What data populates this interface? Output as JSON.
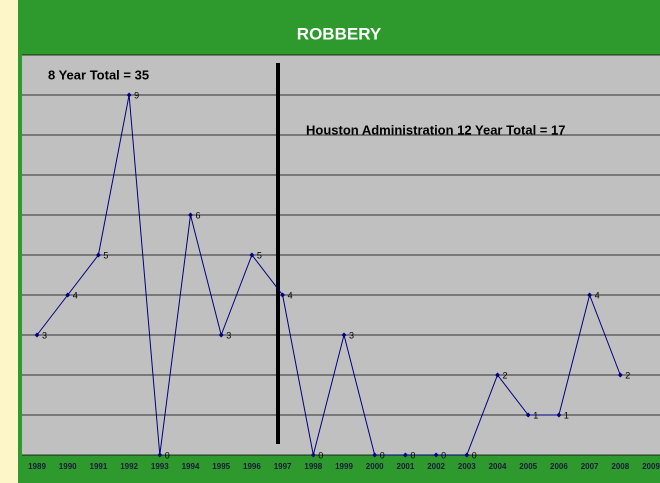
{
  "chart_data": {
    "type": "line",
    "title": "ROBBERY",
    "annotations": [
      "8 Year Total = 35",
      "Houston Administration 12 Year Total = 17"
    ],
    "categories": [
      "1989",
      "1990",
      "1991",
      "1992",
      "1993",
      "1994",
      "1995",
      "1996",
      "1997",
      "1998",
      "1999",
      "2000",
      "2001",
      "2002",
      "2003",
      "2004",
      "2005",
      "2006",
      "2007",
      "2008",
      "2009"
    ],
    "series": [
      {
        "name": "Robbery",
        "color": "#000080",
        "values": [
          3,
          4,
          5,
          9,
          0,
          6,
          3,
          5,
          4,
          0,
          3,
          0,
          0,
          0,
          0,
          2,
          1,
          1,
          4,
          2,
          null
        ]
      }
    ],
    "ylim": [
      0,
      10
    ],
    "yticks": [
      0,
      1,
      2,
      3,
      4,
      5,
      6,
      7,
      8,
      9,
      10
    ],
    "grid": true
  }
}
